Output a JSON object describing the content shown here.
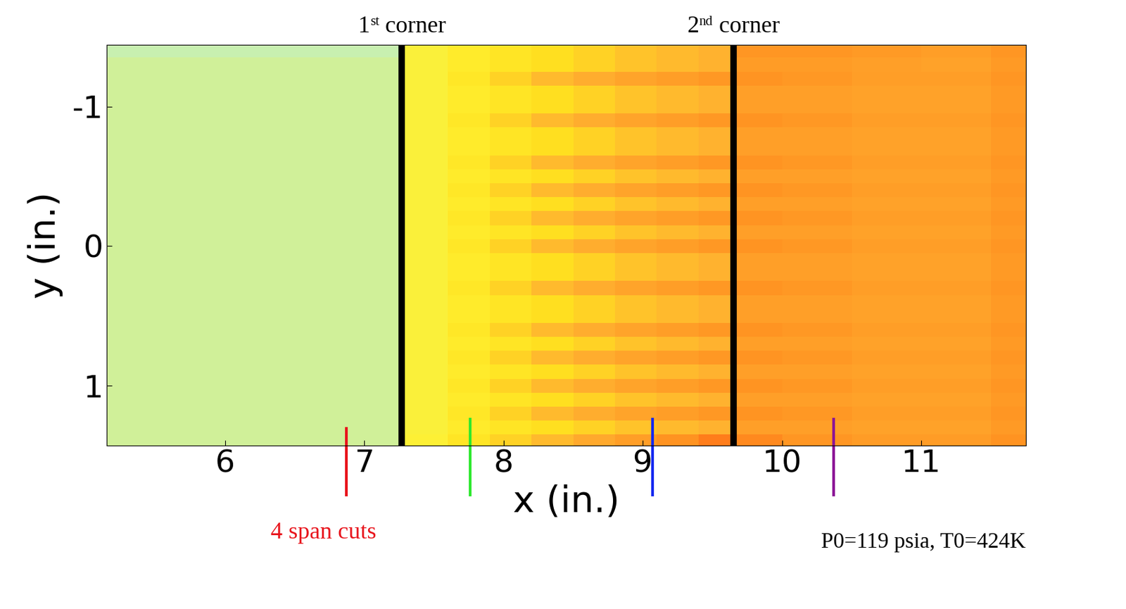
{
  "chart_data": {
    "type": "heatmap",
    "xlabel": "x (in.)",
    "ylabel": "y (in.)",
    "xlim": [
      5.15,
      11.75
    ],
    "ylim": [
      1.43,
      -1.44
    ],
    "xticks": [
      6,
      7,
      8,
      9,
      10,
      11
    ],
    "yticks": [
      -1,
      0,
      1
    ],
    "zlim": [
      0,
      1
    ],
    "x_edges": [
      5.15,
      7.27,
      7.6,
      7.9,
      8.2,
      8.5,
      8.8,
      9.1,
      9.4,
      9.65,
      10.0,
      10.5,
      11.0,
      11.5,
      11.75
    ],
    "y_edges": [
      -1.44,
      -1.35,
      -1.25,
      -1.15,
      -1.05,
      -0.95,
      -0.85,
      -0.75,
      -0.65,
      -0.55,
      -0.45,
      -0.35,
      -0.25,
      -0.15,
      -0.05,
      0.05,
      0.15,
      0.25,
      0.35,
      0.45,
      0.55,
      0.65,
      0.75,
      0.85,
      0.95,
      1.05,
      1.15,
      1.25,
      1.35,
      1.43
    ],
    "cells": [
      [
        0.0,
        0.3,
        0.38,
        0.45,
        0.5,
        0.55,
        0.6,
        0.63,
        0.66,
        0.8,
        0.8,
        0.78,
        0.76,
        0.8
      ],
      [
        0.05,
        0.3,
        0.38,
        0.45,
        0.5,
        0.55,
        0.6,
        0.63,
        0.66,
        0.77,
        0.77,
        0.75,
        0.74,
        0.78
      ],
      [
        0.05,
        0.3,
        0.43,
        0.55,
        0.63,
        0.68,
        0.73,
        0.76,
        0.79,
        0.81,
        0.79,
        0.76,
        0.76,
        0.8
      ],
      [
        0.05,
        0.3,
        0.38,
        0.45,
        0.5,
        0.55,
        0.6,
        0.63,
        0.66,
        0.75,
        0.75,
        0.74,
        0.74,
        0.78
      ],
      [
        0.05,
        0.3,
        0.38,
        0.45,
        0.5,
        0.55,
        0.6,
        0.63,
        0.66,
        0.75,
        0.75,
        0.74,
        0.74,
        0.78
      ],
      [
        0.05,
        0.3,
        0.43,
        0.55,
        0.63,
        0.68,
        0.73,
        0.76,
        0.79,
        0.81,
        0.79,
        0.76,
        0.76,
        0.8
      ],
      [
        0.05,
        0.3,
        0.38,
        0.45,
        0.5,
        0.55,
        0.6,
        0.63,
        0.66,
        0.75,
        0.75,
        0.74,
        0.74,
        0.78
      ],
      [
        0.05,
        0.3,
        0.38,
        0.45,
        0.5,
        0.55,
        0.6,
        0.63,
        0.66,
        0.75,
        0.75,
        0.74,
        0.74,
        0.78
      ],
      [
        0.05,
        0.3,
        0.43,
        0.55,
        0.63,
        0.68,
        0.73,
        0.76,
        0.79,
        0.81,
        0.79,
        0.76,
        0.76,
        0.8
      ],
      [
        0.05,
        0.3,
        0.38,
        0.45,
        0.5,
        0.55,
        0.6,
        0.63,
        0.66,
        0.75,
        0.75,
        0.74,
        0.74,
        0.78
      ],
      [
        0.05,
        0.3,
        0.43,
        0.55,
        0.63,
        0.68,
        0.73,
        0.76,
        0.79,
        0.81,
        0.79,
        0.76,
        0.76,
        0.8
      ],
      [
        0.05,
        0.3,
        0.38,
        0.45,
        0.5,
        0.55,
        0.6,
        0.63,
        0.66,
        0.75,
        0.75,
        0.74,
        0.74,
        0.78
      ],
      [
        0.05,
        0.3,
        0.43,
        0.55,
        0.63,
        0.68,
        0.73,
        0.76,
        0.79,
        0.81,
        0.79,
        0.76,
        0.76,
        0.8
      ],
      [
        0.05,
        0.3,
        0.38,
        0.45,
        0.5,
        0.55,
        0.6,
        0.63,
        0.66,
        0.75,
        0.75,
        0.74,
        0.74,
        0.78
      ],
      [
        0.05,
        0.3,
        0.43,
        0.55,
        0.63,
        0.68,
        0.73,
        0.76,
        0.79,
        0.81,
        0.79,
        0.76,
        0.76,
        0.8
      ],
      [
        0.05,
        0.3,
        0.38,
        0.45,
        0.5,
        0.55,
        0.6,
        0.63,
        0.66,
        0.75,
        0.75,
        0.74,
        0.74,
        0.78
      ],
      [
        0.05,
        0.3,
        0.38,
        0.45,
        0.5,
        0.55,
        0.6,
        0.63,
        0.66,
        0.75,
        0.75,
        0.74,
        0.74,
        0.78
      ],
      [
        0.05,
        0.3,
        0.43,
        0.55,
        0.63,
        0.68,
        0.73,
        0.76,
        0.79,
        0.81,
        0.79,
        0.76,
        0.76,
        0.8
      ],
      [
        0.05,
        0.3,
        0.38,
        0.45,
        0.5,
        0.55,
        0.6,
        0.63,
        0.66,
        0.75,
        0.75,
        0.74,
        0.74,
        0.78
      ],
      [
        0.05,
        0.3,
        0.38,
        0.45,
        0.5,
        0.55,
        0.6,
        0.63,
        0.66,
        0.75,
        0.75,
        0.74,
        0.74,
        0.78
      ],
      [
        0.05,
        0.3,
        0.43,
        0.55,
        0.63,
        0.68,
        0.73,
        0.76,
        0.79,
        0.81,
        0.79,
        0.76,
        0.76,
        0.8
      ],
      [
        0.05,
        0.3,
        0.38,
        0.45,
        0.5,
        0.55,
        0.6,
        0.63,
        0.66,
        0.75,
        0.75,
        0.74,
        0.74,
        0.78
      ],
      [
        0.05,
        0.3,
        0.43,
        0.55,
        0.63,
        0.68,
        0.73,
        0.76,
        0.79,
        0.81,
        0.79,
        0.76,
        0.76,
        0.8
      ],
      [
        0.05,
        0.3,
        0.38,
        0.45,
        0.5,
        0.55,
        0.6,
        0.63,
        0.66,
        0.75,
        0.75,
        0.74,
        0.74,
        0.78
      ],
      [
        0.05,
        0.3,
        0.43,
        0.55,
        0.63,
        0.68,
        0.73,
        0.76,
        0.79,
        0.81,
        0.79,
        0.76,
        0.76,
        0.8
      ],
      [
        0.05,
        0.3,
        0.38,
        0.45,
        0.5,
        0.55,
        0.6,
        0.63,
        0.66,
        0.75,
        0.75,
        0.74,
        0.74,
        0.78
      ],
      [
        0.05,
        0.3,
        0.43,
        0.55,
        0.63,
        0.68,
        0.73,
        0.76,
        0.79,
        0.81,
        0.79,
        0.76,
        0.76,
        0.8
      ],
      [
        0.05,
        0.3,
        0.38,
        0.45,
        0.5,
        0.55,
        0.6,
        0.63,
        0.66,
        0.75,
        0.75,
        0.74,
        0.74,
        0.78
      ],
      [
        0.05,
        0.32,
        0.45,
        0.55,
        0.63,
        0.7,
        0.76,
        0.82,
        0.88,
        0.85,
        0.8,
        0.77,
        0.77,
        0.82
      ]
    ],
    "corners": [
      {
        "x": 7.27,
        "label": "1st corner"
      },
      {
        "x": 9.65,
        "label": "2nd corner"
      }
    ],
    "span_cuts": {
      "label": "4 span cuts",
      "x": [
        6.87,
        7.76,
        9.07,
        10.37
      ],
      "colors": [
        "#e8141c",
        "#2ee82e",
        "#1428f0",
        "#8c1496"
      ]
    },
    "note": "P0=119 psia, T0=424K"
  }
}
